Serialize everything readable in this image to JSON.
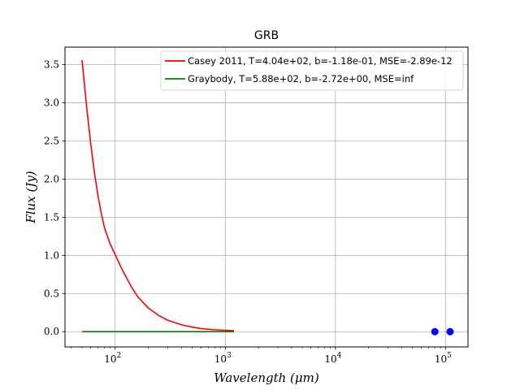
{
  "chart_data": {
    "type": "line",
    "title": "GRB",
    "xlabel": "Wavelength (μm)",
    "ylabel": "Flux (Jy)",
    "x_scale": "log",
    "xlim": [
      35,
      160000
    ],
    "ylim": [
      -0.2,
      3.73
    ],
    "grid": true,
    "legend_position": "top-right",
    "x_ticks": [
      {
        "value": 100,
        "label": "10",
        "exp": "2"
      },
      {
        "value": 1000,
        "label": "10",
        "exp": "3"
      },
      {
        "value": 10000,
        "label": "10",
        "exp": "4"
      },
      {
        "value": 100000,
        "label": "10",
        "exp": "5"
      }
    ],
    "y_ticks": [
      {
        "value": 0.0,
        "label": "0.0"
      },
      {
        "value": 0.5,
        "label": "0.5"
      },
      {
        "value": 1.0,
        "label": "1.0"
      },
      {
        "value": 1.5,
        "label": "1.5"
      },
      {
        "value": 2.0,
        "label": "2.0"
      },
      {
        "value": 2.5,
        "label": "2.5"
      },
      {
        "value": 3.0,
        "label": "3.0"
      },
      {
        "value": 3.5,
        "label": "3.5"
      }
    ],
    "series": [
      {
        "name": "Casey 2011, T=4.04e+02, b=-1.18e-01, MSE=-2.89e-12",
        "color": "#ff0000",
        "x": [
          50,
          55,
          60,
          65,
          70,
          75,
          80,
          90,
          100,
          110,
          120,
          140,
          160,
          180,
          200,
          250,
          300,
          400,
          500,
          600,
          800,
          1000,
          1200
        ],
        "y": [
          3.56,
          2.95,
          2.46,
          2.07,
          1.77,
          1.54,
          1.36,
          1.15,
          1.01,
          0.88,
          0.77,
          0.59,
          0.46,
          0.38,
          0.31,
          0.21,
          0.15,
          0.09,
          0.06,
          0.04,
          0.025,
          0.018,
          0.012
        ]
      },
      {
        "name": "Graybody, T=5.88e+02, b=-2.72e+00, MSE=inf",
        "color": "#008000",
        "x": [
          50,
          1200
        ],
        "y": [
          0.0,
          0.0
        ]
      }
    ],
    "observed_points": {
      "color": "#0000ff",
      "x": [
        80000,
        110000
      ],
      "y": [
        0.0,
        0.0
      ]
    }
  }
}
